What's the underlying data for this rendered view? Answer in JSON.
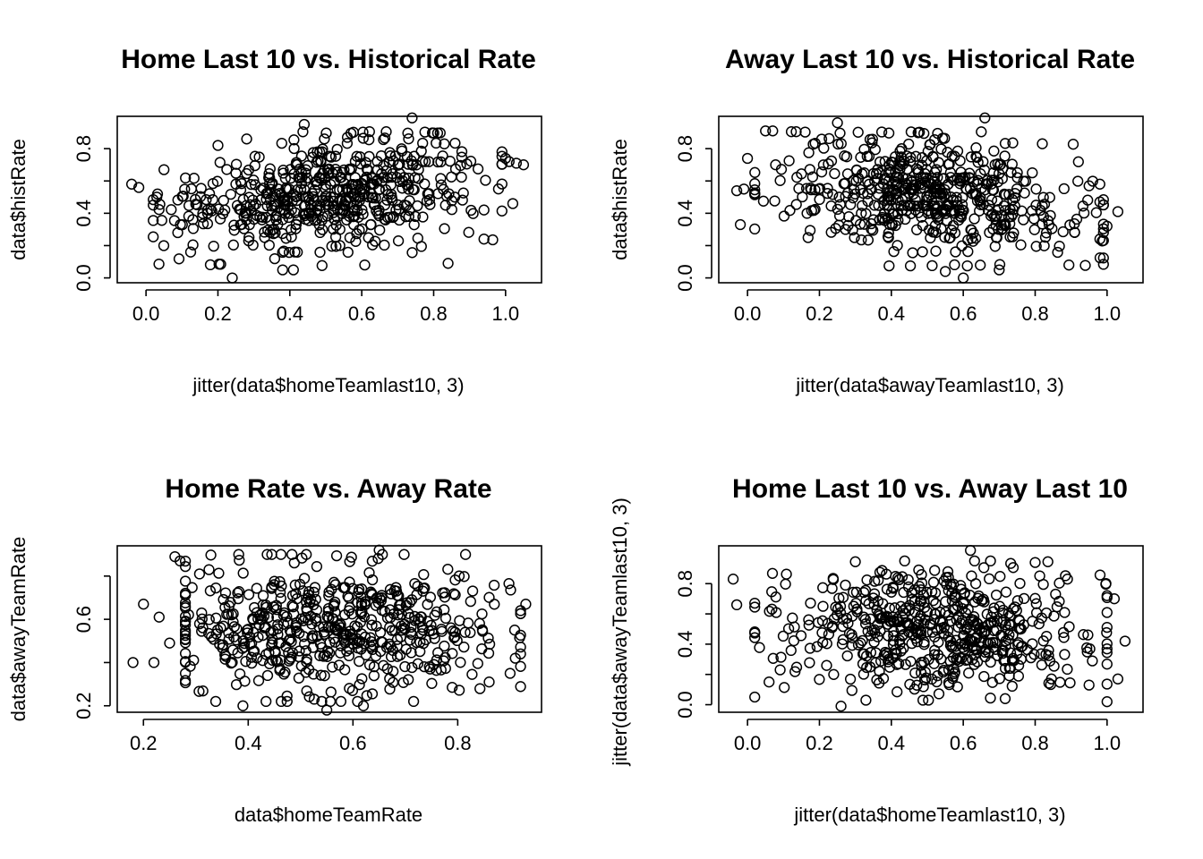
{
  "chart_data": [
    {
      "type": "scatter",
      "title": "Home Last 10 vs. Historical Rate",
      "xlabel": "jitter(data$homeTeamlast10, 3)",
      "ylabel": "data$histRate",
      "xlim": [
        -0.08,
        1.1
      ],
      "ylim": [
        -0.03,
        1.0
      ],
      "xticks": [
        0.0,
        0.2,
        0.4,
        0.6,
        0.8,
        1.0
      ],
      "xtick_labels": [
        "0.0",
        "0.2",
        "0.4",
        "0.6",
        "0.8",
        "1.0"
      ],
      "yticks": [
        0.0,
        0.2,
        0.4,
        0.6,
        0.8
      ],
      "ytick_labels": [
        "0.0",
        "",
        "0.4",
        "",
        "0.8"
      ],
      "grid": false,
      "trend": "weak positive",
      "seed": 11,
      "n": 560,
      "points": [
        [
          -0.04,
          0.58
        ],
        [
          -0.02,
          0.56
        ],
        [
          0.03,
          0.5
        ],
        [
          0.05,
          0.67
        ],
        [
          0.24,
          0.0
        ],
        [
          0.38,
          0.05
        ],
        [
          0.41,
          0.05
        ],
        [
          0.44,
          0.95
        ],
        [
          0.74,
          0.99
        ],
        [
          0.84,
          0.09
        ],
        [
          0.94,
          0.24
        ],
        [
          1.0,
          0.74
        ],
        [
          1.01,
          0.72
        ],
        [
          1.03,
          0.71
        ],
        [
          1.05,
          0.7
        ],
        [
          1.02,
          0.46
        ],
        [
          0.94,
          0.42
        ],
        [
          0.2,
          0.82
        ],
        [
          0.28,
          0.86
        ],
        [
          0.56,
          0.87
        ]
      ]
    },
    {
      "type": "scatter",
      "title": "Away Last 10 vs. Historical Rate",
      "xlabel": "jitter(data$awayTeamlast10, 3)",
      "ylabel": "data$histRate",
      "xlim": [
        -0.08,
        1.1
      ],
      "ylim": [
        -0.03,
        1.0
      ],
      "xticks": [
        0.0,
        0.2,
        0.4,
        0.6,
        0.8,
        1.0
      ],
      "xtick_labels": [
        "0.0",
        "0.2",
        "0.4",
        "0.6",
        "0.8",
        "1.0"
      ],
      "yticks": [
        0.0,
        0.2,
        0.4,
        0.6,
        0.8
      ],
      "ytick_labels": [
        "0.0",
        "",
        "0.4",
        "",
        "0.8"
      ],
      "grid": false,
      "trend": "weak negative",
      "seed": 23,
      "n": 560,
      "points": [
        [
          -0.03,
          0.54
        ],
        [
          -0.01,
          0.55
        ],
        [
          -0.02,
          0.33
        ],
        [
          0.0,
          0.74
        ],
        [
          0.05,
          0.91
        ],
        [
          0.07,
          0.91
        ],
        [
          0.25,
          0.96
        ],
        [
          0.66,
          0.99
        ],
        [
          0.6,
          0.0
        ],
        [
          0.55,
          0.04
        ],
        [
          0.7,
          0.05
        ],
        [
          0.82,
          0.83
        ],
        [
          0.98,
          0.24
        ],
        [
          1.03,
          0.41
        ],
        [
          1.0,
          0.32
        ],
        [
          0.98,
          0.47
        ],
        [
          0.95,
          0.57
        ],
        [
          0.98,
          0.58
        ]
      ]
    },
    {
      "type": "scatter",
      "title": "Home Rate vs. Away Rate",
      "xlabel": "data$homeTeamRate",
      "ylabel": "data$awayTeamRate",
      "xlim": [
        0.15,
        0.96
      ],
      "ylim": [
        0.17,
        0.94
      ],
      "xticks": [
        0.2,
        0.4,
        0.6,
        0.8
      ],
      "xtick_labels": [
        "0.2",
        "0.4",
        "0.6",
        "0.8"
      ],
      "yticks": [
        0.2,
        0.4,
        0.6,
        0.8
      ],
      "ytick_labels": [
        "0.2",
        "",
        "0.6",
        ""
      ],
      "grid": false,
      "trend": "none",
      "seed": 37,
      "n": 560,
      "points": [
        [
          0.18,
          0.4
        ],
        [
          0.2,
          0.67
        ],
        [
          0.22,
          0.4
        ],
        [
          0.23,
          0.61
        ],
        [
          0.25,
          0.49
        ],
        [
          0.26,
          0.89
        ],
        [
          0.27,
          0.87
        ],
        [
          0.39,
          0.2
        ],
        [
          0.55,
          0.18
        ],
        [
          0.62,
          0.2
        ],
        [
          0.65,
          0.92
        ],
        [
          0.9,
          0.35
        ],
        [
          0.91,
          0.42
        ],
        [
          0.93,
          0.67
        ],
        [
          0.92,
          0.44
        ],
        [
          0.86,
          0.31
        ]
      ]
    },
    {
      "type": "scatter",
      "title": "Home Last 10 vs. Away Last 10",
      "xlabel": "jitter(data$homeTeamlast10, 3)",
      "ylabel": "jitter(data$awayTeamlast10, 3)",
      "xlim": [
        -0.08,
        1.1
      ],
      "ylim": [
        -0.05,
        1.05
      ],
      "xticks": [
        0.0,
        0.2,
        0.4,
        0.6,
        0.8,
        1.0
      ],
      "xtick_labels": [
        "0.0",
        "0.2",
        "0.4",
        "0.6",
        "0.8",
        "1.0"
      ],
      "yticks": [
        0.0,
        0.2,
        0.4,
        0.6,
        0.8
      ],
      "ytick_labels": [
        "0.0",
        "",
        "0.4",
        "",
        "0.8"
      ],
      "grid": false,
      "trend": "weak negative",
      "seed": 53,
      "n": 560,
      "points": [
        [
          -0.04,
          0.83
        ],
        [
          -0.03,
          0.66
        ],
        [
          0.06,
          0.15
        ],
        [
          0.26,
          -0.01
        ],
        [
          0.62,
          1.02
        ],
        [
          1.0,
          0.02
        ],
        [
          1.02,
          0.7
        ],
        [
          1.05,
          0.42
        ],
        [
          1.03,
          0.17
        ],
        [
          0.95,
          0.13
        ],
        [
          0.89,
          0.83
        ],
        [
          0.8,
          0.94
        ]
      ]
    }
  ]
}
